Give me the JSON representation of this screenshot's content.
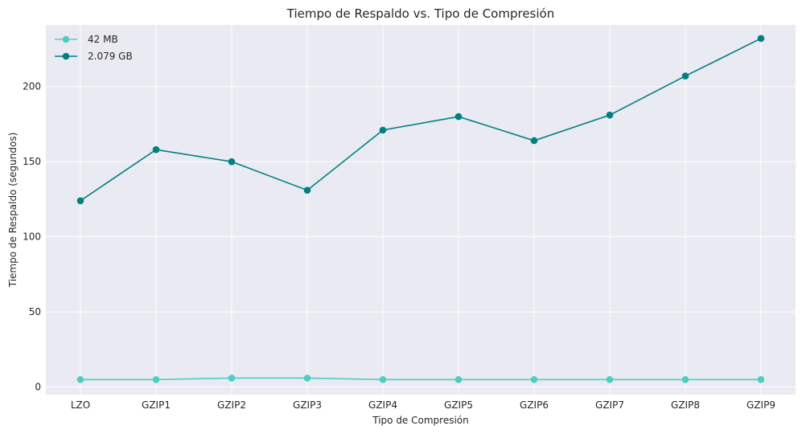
{
  "chart_data": {
    "type": "line",
    "title": "Tiempo de Respaldo vs. Tipo de Compresión",
    "xlabel": "Tipo de Compresión",
    "ylabel": "Tiempo de Respaldo (segundos)",
    "categories": [
      "LZO",
      "GZIP1",
      "GZIP2",
      "GZIP3",
      "GZIP4",
      "GZIP5",
      "GZIP6",
      "GZIP7",
      "GZIP8",
      "GZIP9"
    ],
    "yticks": [
      "0",
      "50",
      "100",
      "150",
      "200"
    ],
    "ylim": [
      -5,
      241
    ],
    "grid": true,
    "legend_position": "top-left",
    "series": [
      {
        "name": "42 MB",
        "color": "#4ecdc4",
        "values": [
          5,
          5,
          6,
          6,
          5,
          5,
          5,
          5,
          5,
          5
        ]
      },
      {
        "name": "2.079 GB",
        "color": "#008080",
        "values": [
          124,
          158,
          150,
          131,
          171,
          180,
          164,
          181,
          207,
          232
        ]
      }
    ]
  }
}
